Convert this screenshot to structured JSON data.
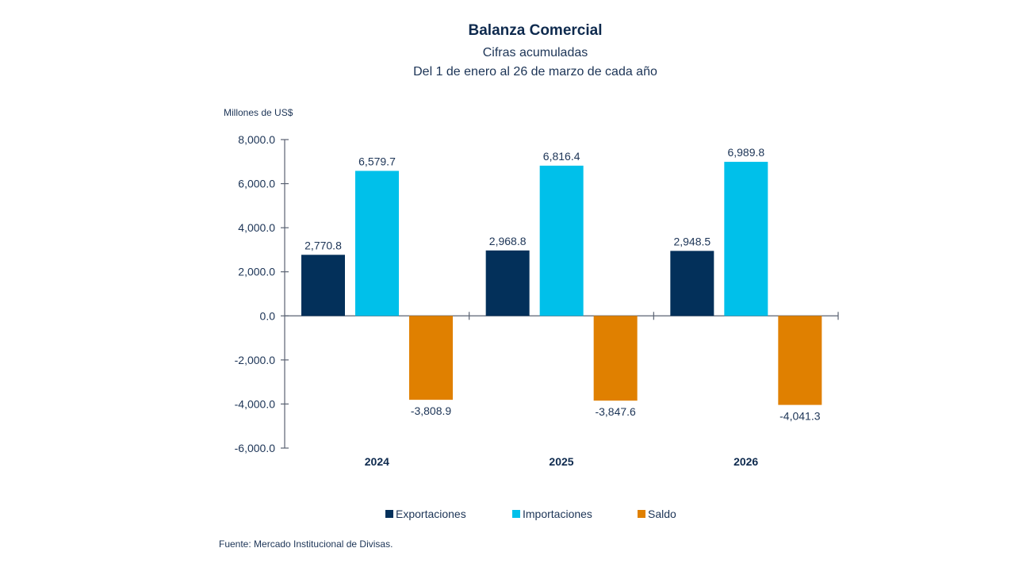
{
  "chart_data": {
    "type": "bar",
    "title": "Balanza Comercial",
    "subtitle": [
      "Cifras acumuladas",
      "Del 1 de enero al 26 de marzo de cada año"
    ],
    "ylabel": "Millones de US$",
    "xlabel": "",
    "categories": [
      "2024",
      "2025",
      "2026"
    ],
    "series": [
      {
        "name": "Exportaciones",
        "color": "#03305a",
        "values": [
          2770.8,
          2968.8,
          2948.5
        ],
        "labels": [
          "2,770.8",
          "2,968.8",
          "2,948.5"
        ]
      },
      {
        "name": "Importaciones",
        "color": "#00c0ea",
        "values": [
          6579.7,
          6816.4,
          6989.8
        ],
        "labels": [
          "6,579.7",
          "6,816.4",
          "6,989.8"
        ]
      },
      {
        "name": "Saldo",
        "color": "#e08000",
        "values": [
          -3808.9,
          -3847.6,
          -4041.3
        ],
        "labels": [
          "-3,808.9",
          "-3,847.6",
          "-4,041.3"
        ]
      }
    ],
    "ylim": [
      -6000,
      8000
    ],
    "yticks": [
      8000,
      6000,
      4000,
      2000,
      0,
      -2000,
      -4000,
      -6000
    ],
    "ytick_labels": [
      "8,000.0",
      "6,000.0",
      "4,000.0",
      "2,000.0",
      "0.0",
      "-2,000.0",
      "-4,000.0",
      "-6,000.0"
    ],
    "grid": false,
    "legend_position": "bottom"
  },
  "source": "Fuente: Mercado Institucional de Divisas.",
  "colors": {
    "text": "#1c3456",
    "axis": "#5a6272"
  }
}
